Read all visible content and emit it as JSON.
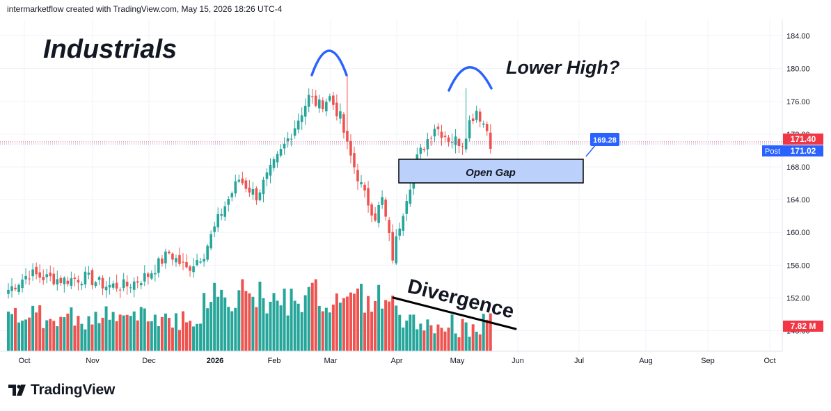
{
  "header": {
    "caption": "intermarketflow created with TradingView.com, May 15, 2026 18:26 UTC-4"
  },
  "brand": {
    "name": "TradingView"
  },
  "colors": {
    "up": "#26a69a",
    "down": "#ef5350",
    "price_badge": "#f23645",
    "post_badge": "#2962ff",
    "gap_fill": "#bbd0fb",
    "arc": "#2962ff",
    "axis_text": "#131722",
    "grid": "#f0f3fa"
  },
  "chart_data": {
    "type": "candlestick",
    "title": "Industrials",
    "y_axis": {
      "min": 145.5,
      "max": 186,
      "ticks": [
        148,
        152,
        156,
        160,
        164,
        168,
        172,
        176,
        180,
        184
      ],
      "tick_labels": [
        "148.00",
        "152.00",
        "156.00",
        "160.00",
        "164.00",
        "168.00",
        "172.00",
        "176.00",
        "180.00",
        "184.00"
      ]
    },
    "x_axis": {
      "labels": [
        "Oct",
        "Nov",
        "Dec",
        "2026",
        "Feb",
        "Mar",
        "Apr",
        "May",
        "Jun",
        "Jul",
        "Aug",
        "Sep",
        "Oct"
      ]
    },
    "price_badges": {
      "last": "171.40",
      "post_label": "Post",
      "post": "171.02",
      "volume": "7.82 M"
    },
    "annotations": {
      "lower_high": "Lower High?",
      "open_gap": "Open Gap",
      "divergence": "Divergence",
      "callout": "169.28"
    },
    "open_gap_range": [
      166.5,
      169.3
    ],
    "waypoints": [
      [
        0,
        153.0
      ],
      [
        6,
        155.0
      ],
      [
        10,
        154.5
      ],
      [
        16,
        154.2
      ],
      [
        22,
        154.5
      ],
      [
        28,
        153.5
      ],
      [
        34,
        153.5
      ],
      [
        40,
        154.8
      ],
      [
        46,
        157.5
      ],
      [
        51,
        155.5
      ],
      [
        56,
        157.5
      ],
      [
        61,
        162.5
      ],
      [
        66,
        166.5
      ],
      [
        71,
        164.5
      ],
      [
        77,
        169.0
      ],
      [
        82,
        173.0
      ],
      [
        86,
        176.5
      ],
      [
        89,
        175.5
      ],
      [
        92,
        176.5
      ],
      [
        95,
        174.0
      ],
      [
        97,
        170.5
      ],
      [
        99,
        168.0
      ],
      [
        102,
        164.5
      ],
      [
        105,
        162.0
      ],
      [
        107,
        164.0
      ],
      [
        110,
        157.0
      ],
      [
        112,
        161.0
      ],
      [
        114,
        164.5
      ],
      [
        117,
        169.0
      ],
      [
        122,
        173.0
      ],
      [
        126,
        171.5
      ],
      [
        130,
        171.0
      ],
      [
        132,
        173.5
      ],
      [
        134,
        175.0
      ],
      [
        137,
        172.5
      ],
      [
        138,
        171.0
      ]
    ],
    "forced_extremes": {
      "high": [
        [
          97,
          179.3
        ],
        [
          131,
          177.6
        ]
      ],
      "low": [
        [
          110,
          156.2
        ]
      ]
    },
    "total_bars": 139,
    "volume_range": [
      5.0,
      13.0
    ]
  }
}
